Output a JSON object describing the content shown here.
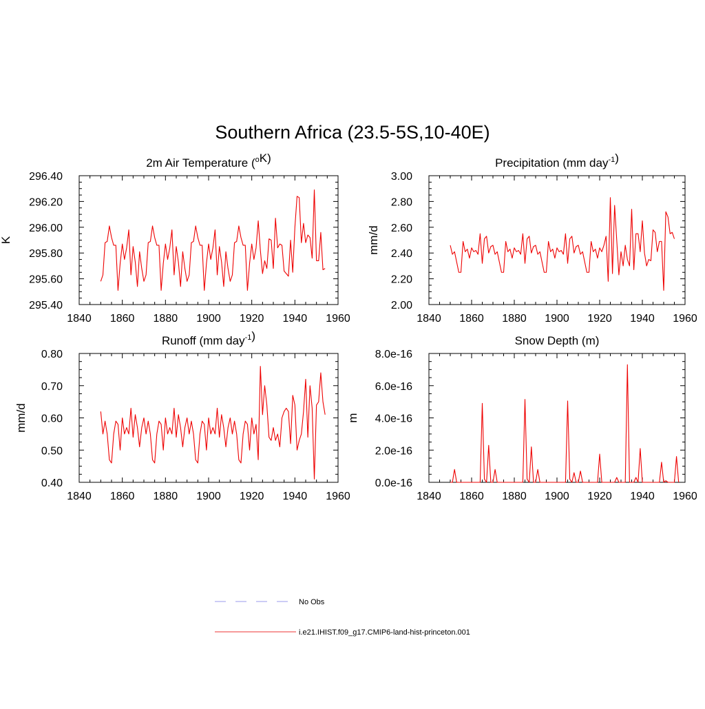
{
  "figure": {
    "title": "Southern Africa (23.5-5S,10-40E)"
  },
  "legend": {
    "entries": [
      {
        "label": "No Obs",
        "color": "#9999ee",
        "style": "dashed"
      },
      {
        "label": "i.e21.IHIST.f09_g17.CMIP6-land-hist-princeton.001",
        "color": "#ee3333",
        "style": "solid"
      }
    ]
  },
  "colors": {
    "series": "#ee0000"
  },
  "chart_data": [
    {
      "type": "line",
      "title": "2m Air Temperature (oK)",
      "title_parts": [
        {
          "t": "2m Air Temperature ("
        },
        {
          "t": "o",
          "sup": true
        },
        {
          "t": "K)"
        }
      ],
      "ylabel": "K",
      "xlim": [
        1840,
        1960
      ],
      "ylim": [
        295.4,
        296.4
      ],
      "xticks": [
        1840,
        1860,
        1880,
        1900,
        1920,
        1940,
        1960
      ],
      "yticks": [
        295.4,
        295.6,
        295.8,
        296.0,
        296.2,
        296.4
      ],
      "ytick_labels": [
        "295.40",
        "295.60",
        "295.80",
        "296.00",
        "296.20",
        "296.40"
      ],
      "series": [
        {
          "x_start": 1850,
          "values": [
            295.58,
            295.63,
            295.88,
            295.89,
            296.01,
            295.92,
            295.86,
            295.86,
            295.51,
            295.72,
            295.87,
            295.75,
            295.84,
            295.98,
            295.63,
            295.85,
            295.73,
            295.54,
            295.81,
            295.68,
            295.58,
            295.63,
            295.88,
            295.89,
            296.01,
            295.92,
            295.86,
            295.86,
            295.51,
            295.72,
            295.87,
            295.75,
            295.84,
            295.98,
            295.63,
            295.85,
            295.73,
            295.54,
            295.81,
            295.68,
            295.58,
            295.63,
            295.88,
            295.89,
            296.01,
            295.92,
            295.86,
            295.86,
            295.51,
            295.72,
            295.87,
            295.75,
            295.84,
            295.98,
            295.63,
            295.85,
            295.73,
            295.54,
            295.81,
            295.68,
            295.58,
            295.63,
            295.88,
            295.89,
            296.01,
            295.92,
            295.86,
            295.86,
            295.51,
            295.72,
            295.87,
            295.75,
            295.84,
            296.05,
            295.82,
            295.64,
            295.74,
            295.68,
            295.91,
            295.9,
            295.68,
            296.07,
            295.84,
            295.87,
            295.86,
            295.66,
            295.64,
            295.62,
            295.9,
            295.65,
            296.0,
            296.24,
            296.23,
            295.88,
            296.03,
            295.88,
            295.94,
            295.92,
            295.76,
            296.29,
            295.74,
            295.74,
            295.96,
            295.67,
            295.68
          ]
        }
      ]
    },
    {
      "type": "line",
      "title": "Precipitation (mm day-1)",
      "title_parts": [
        {
          "t": "Precipitation (mm day"
        },
        {
          "t": "-1",
          "sup": true
        },
        {
          "t": ")"
        }
      ],
      "ylabel": "mm/d",
      "xlim": [
        1840,
        1960
      ],
      "ylim": [
        2.0,
        3.0
      ],
      "xticks": [
        1840,
        1860,
        1880,
        1900,
        1920,
        1940,
        1960
      ],
      "yticks": [
        2.0,
        2.2,
        2.4,
        2.6,
        2.8,
        3.0
      ],
      "ytick_labels": [
        "2.00",
        "2.20",
        "2.40",
        "2.60",
        "2.80",
        "3.00"
      ],
      "series": [
        {
          "x_start": 1850,
          "values": [
            2.46,
            2.39,
            2.41,
            2.33,
            2.25,
            2.25,
            2.49,
            2.41,
            2.43,
            2.36,
            2.44,
            2.41,
            2.42,
            2.39,
            2.55,
            2.32,
            2.51,
            2.53,
            2.4,
            2.45,
            2.46,
            2.39,
            2.41,
            2.33,
            2.25,
            2.25,
            2.49,
            2.41,
            2.43,
            2.36,
            2.44,
            2.41,
            2.42,
            2.39,
            2.55,
            2.32,
            2.51,
            2.53,
            2.4,
            2.45,
            2.46,
            2.39,
            2.41,
            2.33,
            2.25,
            2.25,
            2.49,
            2.41,
            2.43,
            2.36,
            2.44,
            2.41,
            2.42,
            2.39,
            2.55,
            2.32,
            2.51,
            2.53,
            2.4,
            2.45,
            2.46,
            2.39,
            2.41,
            2.33,
            2.25,
            2.25,
            2.49,
            2.41,
            2.43,
            2.36,
            2.44,
            2.41,
            2.46,
            2.53,
            2.18,
            2.83,
            2.24,
            2.77,
            2.5,
            2.23,
            2.41,
            2.3,
            2.46,
            2.35,
            2.3,
            2.74,
            2.27,
            2.55,
            2.55,
            2.41,
            2.65,
            2.4,
            2.3,
            2.35,
            2.34,
            2.58,
            2.56,
            2.41,
            2.49,
            2.49,
            2.11,
            2.72,
            2.68,
            2.55,
            2.56,
            2.51
          ]
        }
      ]
    },
    {
      "type": "line",
      "title": "Runoff (mm day-1)",
      "title_parts": [
        {
          "t": "Runoff (mm day"
        },
        {
          "t": "-1",
          "sup": true
        },
        {
          "t": ")"
        }
      ],
      "ylabel": "mm/d",
      "xlim": [
        1840,
        1960
      ],
      "ylim": [
        0.4,
        0.8
      ],
      "xticks": [
        1840,
        1860,
        1880,
        1900,
        1920,
        1940,
        1960
      ],
      "yticks": [
        0.4,
        0.5,
        0.6,
        0.7,
        0.8
      ],
      "ytick_labels": [
        "0.40",
        "0.50",
        "0.60",
        "0.70",
        "0.80"
      ],
      "series": [
        {
          "x_start": 1850,
          "values": [
            0.62,
            0.55,
            0.59,
            0.55,
            0.47,
            0.46,
            0.55,
            0.59,
            0.58,
            0.5,
            0.6,
            0.55,
            0.57,
            0.55,
            0.63,
            0.54,
            0.61,
            0.57,
            0.51,
            0.57,
            0.6,
            0.55,
            0.59,
            0.55,
            0.47,
            0.46,
            0.55,
            0.59,
            0.58,
            0.5,
            0.6,
            0.55,
            0.57,
            0.55,
            0.63,
            0.54,
            0.61,
            0.57,
            0.51,
            0.57,
            0.6,
            0.55,
            0.59,
            0.55,
            0.47,
            0.46,
            0.55,
            0.59,
            0.58,
            0.5,
            0.6,
            0.55,
            0.57,
            0.55,
            0.63,
            0.54,
            0.61,
            0.57,
            0.51,
            0.57,
            0.6,
            0.55,
            0.59,
            0.55,
            0.47,
            0.46,
            0.55,
            0.59,
            0.58,
            0.5,
            0.6,
            0.55,
            0.58,
            0.47,
            0.76,
            0.61,
            0.7,
            0.64,
            0.54,
            0.53,
            0.57,
            0.53,
            0.55,
            0.51,
            0.6,
            0.62,
            0.63,
            0.62,
            0.52,
            0.67,
            0.64,
            0.5,
            0.53,
            0.55,
            0.62,
            0.72,
            0.54,
            0.7,
            0.63,
            0.41,
            0.64,
            0.65,
            0.74,
            0.65,
            0.61
          ]
        }
      ]
    },
    {
      "type": "line",
      "title": "Snow Depth (m)",
      "title_parts": [
        {
          "t": "Snow Depth (m)"
        }
      ],
      "ylabel": "m",
      "xlim": [
        1840,
        1960
      ],
      "ylim": [
        0,
        8e-16
      ],
      "xticks": [
        1840,
        1860,
        1880,
        1900,
        1920,
        1940,
        1960
      ],
      "yticks": [
        0,
        2e-16,
        4e-16,
        6e-16,
        8e-16
      ],
      "ytick_labels": [
        "0.0e-16",
        "2.0e-16",
        "4.0e-16",
        "6.0e-16",
        "8.0e-16"
      ],
      "series": [
        {
          "x_start": 1850,
          "values": [
            0,
            0,
            8e-17,
            0,
            0,
            0,
            0,
            0,
            0,
            0,
            0,
            0,
            0,
            0,
            0,
            4.9e-16,
            2e-17,
            0,
            2.3e-16,
            0,
            0,
            8e-17,
            0,
            0,
            0,
            0,
            0,
            0,
            0,
            0,
            0,
            0,
            0,
            0,
            0,
            5.15e-16,
            2e-17,
            0,
            2.2e-16,
            0,
            0,
            8e-17,
            0,
            0,
            0,
            0,
            0,
            0,
            0,
            0,
            0,
            0,
            0,
            0,
            0,
            5.05e-16,
            2e-17,
            0,
            6e-17,
            0,
            0,
            7e-17,
            0,
            0,
            0,
            0,
            0,
            0,
            0,
            0,
            1.75e-16,
            0,
            0,
            0,
            0,
            0,
            0,
            0,
            3e-17,
            0,
            0,
            0,
            0,
            7.3e-16,
            0,
            0,
            0,
            3e-17,
            0,
            2.1e-16,
            0,
            0,
            0,
            0,
            0,
            0,
            0,
            0,
            0,
            1.25e-16,
            0,
            1e-17,
            0,
            0,
            0,
            0,
            1.6e-16,
            0
          ]
        }
      ]
    }
  ]
}
